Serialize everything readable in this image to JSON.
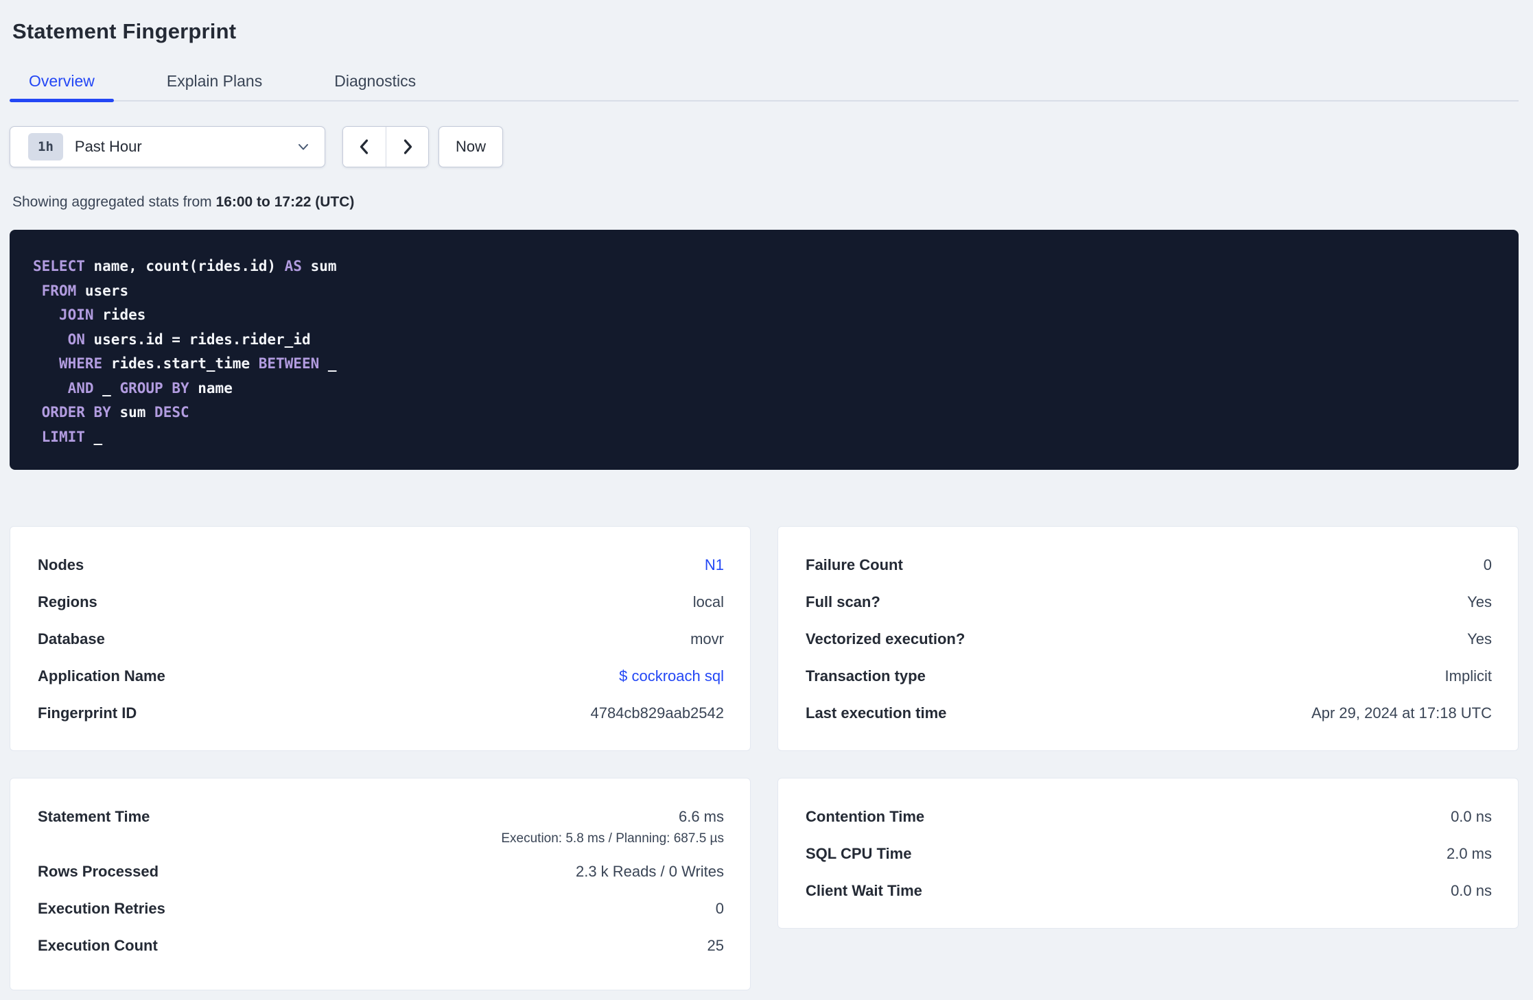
{
  "page": {
    "title": "Statement Fingerprint"
  },
  "tabs": [
    {
      "label": "Overview",
      "active": true
    },
    {
      "label": "Explain Plans",
      "active": false
    },
    {
      "label": "Diagnostics",
      "active": false
    }
  ],
  "time_picker": {
    "badge": "1h",
    "label": "Past Hour",
    "now_label": "Now"
  },
  "stats_line": {
    "prefix": "Showing aggregated stats from ",
    "range": "16:00 to 17:22 (UTC)"
  },
  "sql": {
    "lines": [
      "SELECT name, count(rides.id) AS sum",
      " FROM users",
      "   JOIN rides",
      "    ON users.id = rides.rider_id",
      "   WHERE rides.start_time BETWEEN _",
      "    AND _ GROUP BY name",
      " ORDER BY sum DESC",
      " LIMIT _"
    ],
    "keywords": [
      "SELECT",
      "AS",
      "FROM",
      "JOIN",
      "ON",
      "WHERE",
      "BETWEEN",
      "AND",
      "GROUP",
      "BY",
      "ORDER",
      "DESC",
      "LIMIT"
    ]
  },
  "cards": {
    "details": {
      "rows": [
        {
          "label": "Nodes",
          "value": "N1"
        },
        {
          "label": "Regions",
          "value": "local"
        },
        {
          "label": "Database",
          "value": "movr"
        },
        {
          "label": "Application Name",
          "value": "$ cockroach sql"
        },
        {
          "label": "Fingerprint ID",
          "value": "4784cb829aab2542"
        }
      ]
    },
    "attributes": {
      "rows": [
        {
          "label": "Failure Count",
          "value": "0"
        },
        {
          "label": "Full scan?",
          "value": "Yes"
        },
        {
          "label": "Vectorized execution?",
          "value": "Yes"
        },
        {
          "label": "Transaction type",
          "value": "Implicit"
        },
        {
          "label": "Last execution time",
          "value": "Apr 29, 2024 at 17:18 UTC"
        }
      ]
    },
    "times": {
      "statement_time_label": "Statement Time",
      "statement_time_value": "6.6 ms",
      "statement_time_sub": "Execution: 5.8 ms / Planning: 687.5 µs",
      "rows": [
        {
          "label": "Rows Processed",
          "value": "2.3 k Reads / 0 Writes"
        },
        {
          "label": "Execution Retries",
          "value": "0"
        },
        {
          "label": "Execution Count",
          "value": "25"
        }
      ]
    },
    "waits": {
      "rows": [
        {
          "label": "Contention Time",
          "value": "0.0 ns"
        },
        {
          "label": "SQL CPU Time",
          "value": "2.0 ms"
        },
        {
          "label": "Client Wait Time",
          "value": "0.0 ns"
        }
      ]
    }
  },
  "colors": {
    "accent_blue": "#2347f5",
    "sql_keyword": "#b29ce0",
    "sql_background": "#131a2c",
    "page_background": "#eff2f6"
  }
}
